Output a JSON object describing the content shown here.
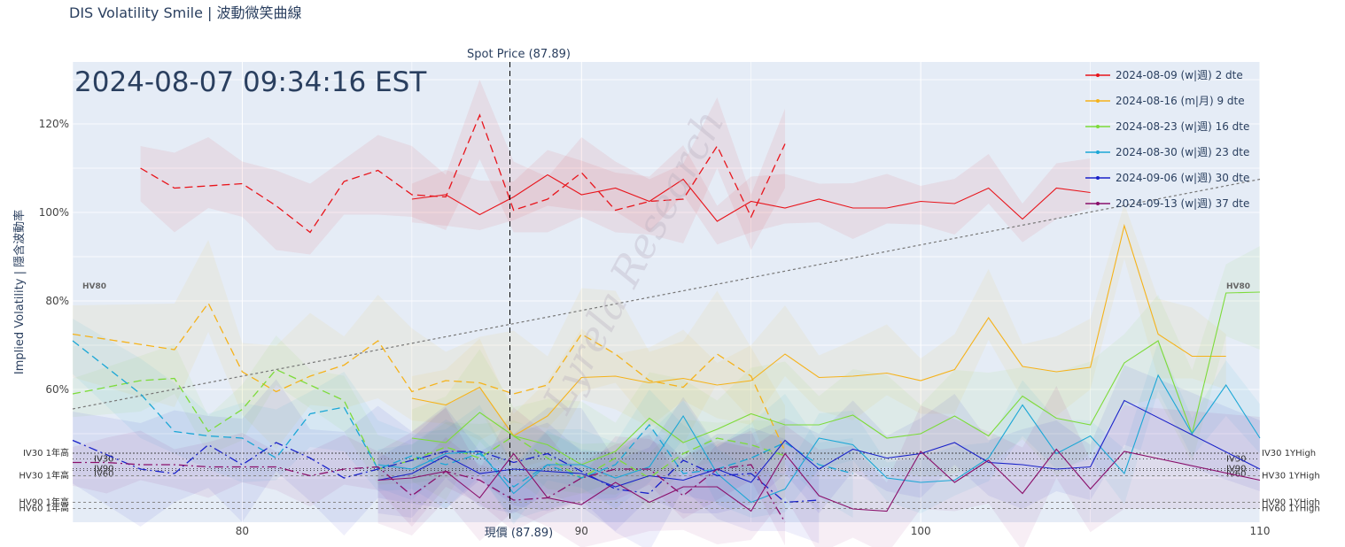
{
  "title": "DIS Volatility Smile | 波動微笑曲線",
  "timestamp": "2024-08-07 09:34:16 EST",
  "spot_label_top": "Spot Price (87.89)",
  "spot_label_bottom": "現價 (87.89)",
  "watermark": "Lyrela Research",
  "colors": {
    "plot_bg": "#e5ecf6",
    "grid": "#ffffff",
    "spot_line": "#000000",
    "trend": "#777777"
  },
  "chart_data": {
    "type": "line",
    "ylabel": "Implied Volatility | 隱含波動率",
    "xlim": [
      75,
      110
    ],
    "ylim": [
      0.3,
      1.34
    ],
    "x_ticks": [
      80,
      90,
      100,
      110
    ],
    "x_tick_labels": [
      "80",
      "90",
      "100",
      "110"
    ],
    "y_ticks": [
      0.6,
      0.8,
      1.0,
      1.2
    ],
    "y_tick_labels": [
      "60%",
      "80%",
      "100%",
      "120%"
    ],
    "spot": 87.89,
    "legend_position": "top-right",
    "trend_line": {
      "x": [
        75,
        110
      ],
      "y": [
        0.556,
        1.075
      ]
    },
    "series": [
      {
        "name": "2024-08-09 (w|週) 2 dte",
        "color": "#e8141b",
        "calls": {
          "x": [
            85,
            86,
            87,
            88,
            89,
            90,
            91,
            92,
            93,
            94,
            95,
            96,
            97,
            98,
            99,
            100,
            101,
            102,
            103,
            104,
            105
          ],
          "y": [
            1.03,
            1.04,
            0.995,
            1.035,
            1.085,
            1.04,
            1.055,
            1.025,
            1.075,
            0.98,
            1.025,
            1.01,
            1.03,
            1.01,
            1.01,
            1.025,
            1.02,
            1.055,
            0.985,
            1.055,
            1.045
          ]
        },
        "puts": {
          "x": [
            77,
            78,
            79,
            80,
            81,
            82,
            83,
            84,
            85,
            86,
            87,
            88,
            89,
            90,
            91,
            92,
            93,
            94,
            95,
            96
          ],
          "y": [
            1.1,
            1.055,
            1.06,
            1.065,
            1.015,
            0.955,
            1.07,
            1.095,
            1.04,
            1.035,
            1.22,
            1.005,
            1.03,
            1.09,
            1.005,
            1.025,
            1.03,
            1.15,
            0.99,
            1.155
          ]
        }
      },
      {
        "name": "2024-08-16 (m|月) 9 dte",
        "color": "#f5b21a",
        "calls": {
          "x": [
            85,
            86,
            87,
            88,
            89,
            90,
            91,
            92,
            93,
            94,
            95,
            96,
            97,
            98,
            99,
            100,
            101,
            102,
            103,
            104,
            105,
            106,
            107,
            108,
            109
          ],
          "y": [
            0.58,
            0.565,
            0.605,
            0.495,
            0.54,
            0.627,
            0.63,
            0.615,
            0.625,
            0.61,
            0.62,
            0.68,
            0.627,
            0.63,
            0.637,
            0.62,
            0.645,
            0.762,
            0.652,
            0.64,
            0.65,
            0.97,
            0.725,
            0.675,
            0.675
          ]
        },
        "puts": {
          "x": [
            75,
            78,
            79,
            80,
            81,
            82,
            83,
            84,
            85,
            86,
            87,
            88,
            89,
            90,
            91,
            92,
            93,
            94,
            95,
            96
          ],
          "y": [
            0.725,
            0.69,
            0.795,
            0.64,
            0.595,
            0.63,
            0.655,
            0.71,
            0.595,
            0.62,
            0.615,
            0.59,
            0.61,
            0.725,
            0.68,
            0.62,
            0.605,
            0.68,
            0.63,
            0.46
          ]
        }
      },
      {
        "name": "2024-08-23 (w|週) 16 dte",
        "color": "#7ddb3a",
        "calls": {
          "x": [
            85,
            86,
            87,
            88,
            89,
            90,
            91,
            92,
            93,
            94,
            95,
            96,
            97,
            98,
            99,
            100,
            101,
            102,
            103,
            104,
            105,
            106,
            107,
            108,
            109,
            110
          ],
          "y": [
            0.49,
            0.48,
            0.548,
            0.495,
            0.475,
            0.43,
            0.46,
            0.535,
            0.48,
            0.51,
            0.545,
            0.52,
            0.52,
            0.542,
            0.49,
            0.5,
            0.54,
            0.495,
            0.585,
            0.535,
            0.52,
            0.66,
            0.71,
            0.5,
            0.818,
            0.82
          ]
        },
        "puts": {
          "x": [
            75,
            77,
            78,
            79,
            80,
            81,
            82,
            83,
            84,
            85,
            86,
            87,
            88,
            89,
            90,
            91,
            92,
            93,
            94,
            95,
            96
          ],
          "y": [
            0.59,
            0.62,
            0.625,
            0.505,
            0.555,
            0.645,
            0.61,
            0.575,
            0.42,
            0.44,
            0.47,
            0.445,
            0.495,
            0.445,
            0.4,
            0.445,
            0.4,
            0.455,
            0.49,
            0.475,
            0.45
          ]
        }
      },
      {
        "name": "2024-08-30 (w|週) 23 dte",
        "color": "#1ba7d6",
        "calls": {
          "x": [
            84,
            85,
            86,
            87,
            88,
            89,
            90,
            91,
            92,
            93,
            94,
            95,
            96,
            97,
            98,
            99,
            100,
            101,
            102,
            103,
            104,
            105,
            106,
            107,
            108,
            109,
            110
          ],
          "y": [
            0.43,
            0.42,
            0.455,
            0.46,
            0.365,
            0.43,
            0.43,
            0.4,
            0.425,
            0.54,
            0.41,
            0.345,
            0.375,
            0.49,
            0.475,
            0.4,
            0.39,
            0.395,
            0.445,
            0.565,
            0.455,
            0.495,
            0.41,
            0.632,
            0.5,
            0.61,
            0.49
          ]
        },
        "puts": {
          "x": [
            75,
            77,
            78,
            79,
            80,
            81,
            82,
            83,
            84,
            85,
            86,
            87,
            88,
            89,
            90,
            91,
            92,
            93,
            94,
            95,
            96,
            97,
            98
          ],
          "y": [
            0.71,
            0.59,
            0.505,
            0.495,
            0.49,
            0.445,
            0.545,
            0.56,
            0.42,
            0.45,
            0.43,
            0.455,
            0.38,
            0.43,
            0.4,
            0.43,
            0.52,
            0.41,
            0.42,
            0.445,
            0.48,
            0.43,
            0.41
          ]
        }
      },
      {
        "name": "2024-09-06 (w|週) 30 dte",
        "color": "#1a22c9",
        "calls": {
          "x": [
            84,
            85,
            86,
            87,
            88,
            89,
            90,
            91,
            92,
            93,
            94,
            95,
            96,
            97,
            98,
            99,
            100,
            101,
            102,
            103,
            104,
            105,
            106,
            110
          ],
          "y": [
            0.395,
            0.41,
            0.45,
            0.41,
            0.42,
            0.415,
            0.41,
            0.38,
            0.405,
            0.395,
            0.42,
            0.39,
            0.485,
            0.42,
            0.465,
            0.445,
            0.455,
            0.48,
            0.435,
            0.43,
            0.42,
            0.425,
            0.575,
            0.42
          ]
        },
        "puts": {
          "x": [
            75,
            77,
            78,
            79,
            80,
            81,
            82,
            83,
            84,
            85,
            86,
            87,
            88,
            89,
            90,
            91,
            92,
            93,
            94,
            95,
            96,
            97
          ],
          "y": [
            0.485,
            0.42,
            0.41,
            0.475,
            0.43,
            0.48,
            0.445,
            0.4,
            0.42,
            0.44,
            0.46,
            0.46,
            0.435,
            0.455,
            0.415,
            0.375,
            0.365,
            0.44,
            0.405,
            0.41,
            0.345,
            0.35
          ]
        }
      },
      {
        "name": "2024-09-13 (w|週) 37 dte",
        "color": "#8a0f6b",
        "calls": {
          "x": [
            84,
            85,
            86,
            87,
            88,
            89,
            90,
            91,
            92,
            93,
            94,
            95,
            96,
            97,
            98,
            99,
            100,
            101,
            102,
            103,
            104,
            105,
            106,
            110
          ],
          "y": [
            0.395,
            0.4,
            0.415,
            0.355,
            0.455,
            0.355,
            0.34,
            0.39,
            0.345,
            0.38,
            0.38,
            0.325,
            0.455,
            0.36,
            0.33,
            0.325,
            0.46,
            0.39,
            0.44,
            0.365,
            0.465,
            0.375,
            0.46,
            0.395
          ]
        },
        "puts": {
          "x": [
            75,
            76,
            77,
            78,
            79,
            80,
            81,
            82,
            83,
            84,
            85,
            86,
            87,
            88,
            89,
            90,
            91,
            92,
            93,
            94,
            95,
            96
          ],
          "y": [
            0.435,
            0.435,
            0.43,
            0.43,
            0.425,
            0.425,
            0.425,
            0.405,
            0.42,
            0.425,
            0.36,
            0.415,
            0.395,
            0.35,
            0.355,
            0.4,
            0.42,
            0.42,
            0.36,
            0.42,
            0.43,
            0.3
          ]
        }
      }
    ],
    "reference_lines": [
      {
        "name": "IV30 1YHigh",
        "left_label": "IV30 1年高",
        "right_label": "IV30 1YHigh",
        "y": 0.456,
        "color": "#444444",
        "dash": "2,2"
      },
      {
        "name": "IV30",
        "left_label": "IV30",
        "right_label": "IV30",
        "y": 0.443,
        "color": "#444444",
        "dash": "1,3"
      },
      {
        "name": "IV90",
        "left_label": "IV90",
        "right_label": "IV90",
        "y": 0.421,
        "color": "#444444",
        "dash": "1,3"
      },
      {
        "name": "IV60",
        "left_label": "IV60",
        "right_label": "IV60",
        "y": 0.417,
        "color": "#444444",
        "dash": "1,3"
      },
      {
        "name": "HV30 1YHigh",
        "left_label": "HV30 1年高",
        "right_label": "HV30 1YHigh",
        "y": 0.405,
        "color": "#888888",
        "dash": "3,3"
      },
      {
        "name": "HV90 1YHigh",
        "left_label": "HV90 1年高",
        "right_label": "HV90 1YHigh",
        "y": 0.345,
        "color": "#888888",
        "dash": "3,3"
      },
      {
        "name": "HV60 1YHigh",
        "left_label": "HV60 1年高",
        "right_label": "HV60 1YHigh",
        "y": 0.331,
        "color": "#888888",
        "dash": "3,3"
      }
    ],
    "hv80_label": "HV80"
  }
}
